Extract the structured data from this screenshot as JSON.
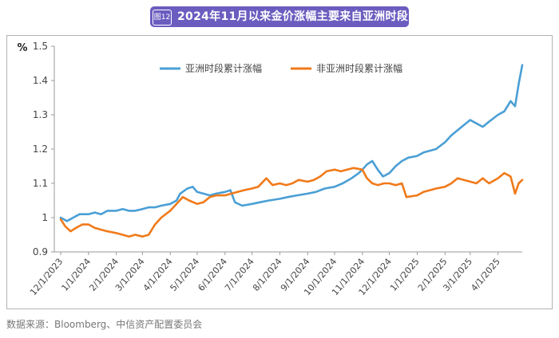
{
  "header": {
    "tag": "图12",
    "title": "2024年11月以来金价涨幅主要来自亚洲时段"
  },
  "source": "数据来源：Bloomberg、中信资产配置委员会",
  "chart_data": {
    "type": "line",
    "ylabel": "%",
    "ylim": [
      0.9,
      1.5
    ],
    "yticks": [
      0.9,
      1,
      1.1,
      1.2,
      1.3,
      1.4,
      1.5
    ],
    "xticks": [
      "12/1/2023",
      "1/1/2024",
      "2/1/2024",
      "3/1/2024",
      "4/1/2024",
      "5/1/2024",
      "6/1/2024",
      "7/1/2024",
      "8/1/2024",
      "9/1/2024",
      "10/1/2024",
      "11/1/2024",
      "12/1/2024",
      "1/1/2025",
      "2/1/2025",
      "3/1/2025",
      "4/1/2025"
    ],
    "legend_position": "top",
    "grid": false,
    "series": [
      {
        "name": "亚洲时段累计涨幅",
        "color": "#4a9fd5",
        "points": [
          [
            "2023-12-01",
            1.0
          ],
          [
            "2023-12-08",
            0.99
          ],
          [
            "2023-12-15",
            1.0
          ],
          [
            "2023-12-22",
            1.01
          ],
          [
            "2024-01-01",
            1.01
          ],
          [
            "2024-01-08",
            1.015
          ],
          [
            "2024-01-15",
            1.01
          ],
          [
            "2024-01-22",
            1.02
          ],
          [
            "2024-02-01",
            1.02
          ],
          [
            "2024-02-08",
            1.025
          ],
          [
            "2024-02-15",
            1.02
          ],
          [
            "2024-02-22",
            1.02
          ],
          [
            "2024-03-01",
            1.025
          ],
          [
            "2024-03-08",
            1.03
          ],
          [
            "2024-03-15",
            1.03
          ],
          [
            "2024-03-22",
            1.035
          ],
          [
            "2024-04-01",
            1.04
          ],
          [
            "2024-04-08",
            1.05
          ],
          [
            "2024-04-12",
            1.07
          ],
          [
            "2024-04-20",
            1.085
          ],
          [
            "2024-04-26",
            1.09
          ],
          [
            "2024-05-01",
            1.075
          ],
          [
            "2024-05-08",
            1.07
          ],
          [
            "2024-05-15",
            1.065
          ],
          [
            "2024-05-22",
            1.07
          ],
          [
            "2024-06-01",
            1.075
          ],
          [
            "2024-06-07",
            1.08
          ],
          [
            "2024-06-12",
            1.045
          ],
          [
            "2024-06-20",
            1.035
          ],
          [
            "2024-07-01",
            1.04
          ],
          [
            "2024-07-10",
            1.045
          ],
          [
            "2024-07-20",
            1.05
          ],
          [
            "2024-08-01",
            1.055
          ],
          [
            "2024-08-10",
            1.06
          ],
          [
            "2024-08-20",
            1.065
          ],
          [
            "2024-09-01",
            1.07
          ],
          [
            "2024-09-10",
            1.075
          ],
          [
            "2024-09-20",
            1.085
          ],
          [
            "2024-10-01",
            1.09
          ],
          [
            "2024-10-10",
            1.1
          ],
          [
            "2024-10-20",
            1.115
          ],
          [
            "2024-10-28",
            1.13
          ],
          [
            "2024-11-01",
            1.14
          ],
          [
            "2024-11-06",
            1.155
          ],
          [
            "2024-11-12",
            1.165
          ],
          [
            "2024-11-18",
            1.14
          ],
          [
            "2024-11-24",
            1.12
          ],
          [
            "2024-12-01",
            1.13
          ],
          [
            "2024-12-08",
            1.15
          ],
          [
            "2024-12-15",
            1.165
          ],
          [
            "2024-12-22",
            1.175
          ],
          [
            "2025-01-01",
            1.18
          ],
          [
            "2025-01-08",
            1.19
          ],
          [
            "2025-01-15",
            1.195
          ],
          [
            "2025-01-22",
            1.2
          ],
          [
            "2025-02-01",
            1.22
          ],
          [
            "2025-02-08",
            1.24
          ],
          [
            "2025-02-15",
            1.255
          ],
          [
            "2025-02-22",
            1.27
          ],
          [
            "2025-03-01",
            1.285
          ],
          [
            "2025-03-08",
            1.275
          ],
          [
            "2025-03-15",
            1.265
          ],
          [
            "2025-03-22",
            1.28
          ],
          [
            "2025-04-01",
            1.3
          ],
          [
            "2025-04-08",
            1.31
          ],
          [
            "2025-04-15",
            1.34
          ],
          [
            "2025-04-20",
            1.325
          ],
          [
            "2025-04-24",
            1.39
          ],
          [
            "2025-04-28",
            1.445
          ]
        ]
      },
      {
        "name": "非亚洲时段累计涨幅",
        "color": "#f07a1a",
        "points": [
          [
            "2023-12-01",
            0.995
          ],
          [
            "2023-12-06",
            0.975
          ],
          [
            "2023-12-12",
            0.96
          ],
          [
            "2023-12-18",
            0.97
          ],
          [
            "2023-12-25",
            0.98
          ],
          [
            "2024-01-01",
            0.98
          ],
          [
            "2024-01-08",
            0.97
          ],
          [
            "2024-01-15",
            0.965
          ],
          [
            "2024-01-22",
            0.96
          ],
          [
            "2024-02-01",
            0.955
          ],
          [
            "2024-02-08",
            0.95
          ],
          [
            "2024-02-15",
            0.945
          ],
          [
            "2024-02-22",
            0.95
          ],
          [
            "2024-03-01",
            0.945
          ],
          [
            "2024-03-08",
            0.95
          ],
          [
            "2024-03-15",
            0.98
          ],
          [
            "2024-03-22",
            1.0
          ],
          [
            "2024-04-01",
            1.02
          ],
          [
            "2024-04-08",
            1.04
          ],
          [
            "2024-04-15",
            1.06
          ],
          [
            "2024-04-22",
            1.05
          ],
          [
            "2024-05-01",
            1.04
          ],
          [
            "2024-05-08",
            1.045
          ],
          [
            "2024-05-15",
            1.06
          ],
          [
            "2024-05-22",
            1.065
          ],
          [
            "2024-06-01",
            1.065
          ],
          [
            "2024-06-08",
            1.07
          ],
          [
            "2024-06-15",
            1.075
          ],
          [
            "2024-06-22",
            1.08
          ],
          [
            "2024-07-01",
            1.085
          ],
          [
            "2024-07-08",
            1.09
          ],
          [
            "2024-07-17",
            1.115
          ],
          [
            "2024-07-24",
            1.095
          ],
          [
            "2024-08-01",
            1.1
          ],
          [
            "2024-08-08",
            1.095
          ],
          [
            "2024-08-15",
            1.1
          ],
          [
            "2024-08-22",
            1.11
          ],
          [
            "2024-09-01",
            1.105
          ],
          [
            "2024-09-08",
            1.11
          ],
          [
            "2024-09-15",
            1.12
          ],
          [
            "2024-09-22",
            1.135
          ],
          [
            "2024-10-01",
            1.14
          ],
          [
            "2024-10-08",
            1.135
          ],
          [
            "2024-10-15",
            1.14
          ],
          [
            "2024-10-22",
            1.145
          ],
          [
            "2024-11-01",
            1.14
          ],
          [
            "2024-11-06",
            1.115
          ],
          [
            "2024-11-12",
            1.1
          ],
          [
            "2024-11-18",
            1.095
          ],
          [
            "2024-11-25",
            1.1
          ],
          [
            "2024-12-01",
            1.1
          ],
          [
            "2024-12-08",
            1.095
          ],
          [
            "2024-12-15",
            1.1
          ],
          [
            "2024-12-20",
            1.06
          ],
          [
            "2025-01-01",
            1.065
          ],
          [
            "2025-01-08",
            1.075
          ],
          [
            "2025-01-15",
            1.08
          ],
          [
            "2025-01-22",
            1.085
          ],
          [
            "2025-02-01",
            1.09
          ],
          [
            "2025-02-08",
            1.1
          ],
          [
            "2025-02-15",
            1.115
          ],
          [
            "2025-02-22",
            1.11
          ],
          [
            "2025-03-01",
            1.105
          ],
          [
            "2025-03-08",
            1.1
          ],
          [
            "2025-03-15",
            1.115
          ],
          [
            "2025-03-22",
            1.1
          ],
          [
            "2025-04-01",
            1.115
          ],
          [
            "2025-04-08",
            1.13
          ],
          [
            "2025-04-15",
            1.12
          ],
          [
            "2025-04-20",
            1.07
          ],
          [
            "2025-04-24",
            1.1
          ],
          [
            "2025-04-28",
            1.11
          ]
        ]
      }
    ]
  }
}
